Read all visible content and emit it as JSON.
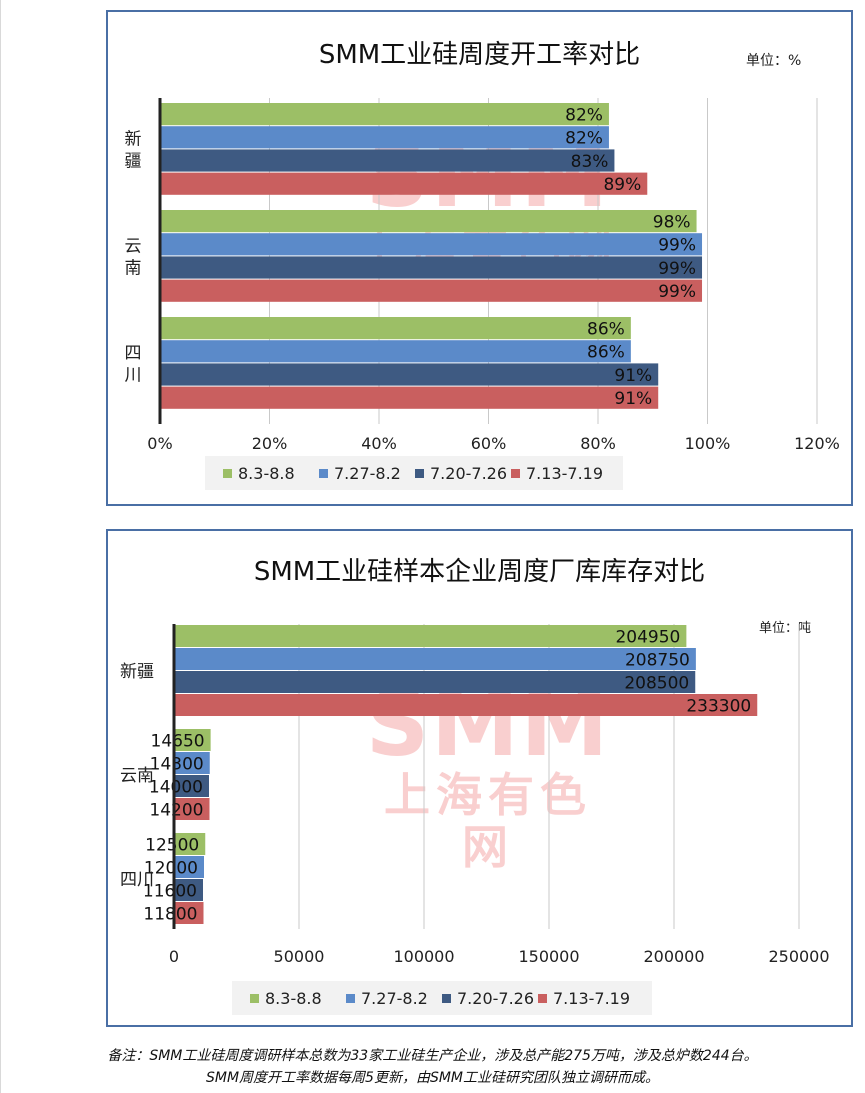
{
  "chart_data": [
    {
      "type": "bar",
      "orientation": "horizontal",
      "title": "SMM工业硅周度开工率对比",
      "unit_label": "单位：%",
      "categories": [
        "新疆",
        "云南",
        "四川"
      ],
      "series": [
        {
          "name": "8.3-8.8",
          "color": "#9cbf66",
          "values": [
            82,
            98,
            86
          ]
        },
        {
          "name": "7.27-8.2",
          "color": "#5b8ac9",
          "values": [
            82,
            99,
            86
          ]
        },
        {
          "name": "7.20-7.26",
          "color": "#3e5a82",
          "values": [
            83,
            99,
            91
          ]
        },
        {
          "name": "7.13-7.19",
          "color": "#c95f5f",
          "values": [
            89,
            99,
            91
          ]
        }
      ],
      "value_suffix": "%",
      "xlim": [
        0,
        120
      ],
      "ticks": [
        0,
        20,
        40,
        60,
        80,
        100,
        120
      ],
      "tick_labels": [
        "0%",
        "20%",
        "40%",
        "60%",
        "80%",
        "100%",
        "120%"
      ],
      "grid": true,
      "legend_position": "bottom"
    },
    {
      "type": "bar",
      "orientation": "horizontal",
      "title": "SMM工业硅样本企业周度厂库库存对比",
      "unit_label": "单位：吨",
      "categories": [
        "新疆",
        "云南",
        "四川"
      ],
      "series": [
        {
          "name": "8.3-8.8",
          "color": "#9cbf66",
          "values": [
            204950,
            14650,
            12500
          ]
        },
        {
          "name": "7.27-8.2",
          "color": "#5b8ac9",
          "values": [
            208750,
            14300,
            12000
          ]
        },
        {
          "name": "7.20-7.26",
          "color": "#3e5a82",
          "values": [
            208500,
            14000,
            11600
          ]
        },
        {
          "name": "7.13-7.19",
          "color": "#c95f5f",
          "values": [
            233300,
            14200,
            11800
          ]
        }
      ],
      "value_suffix": "",
      "xlim": [
        0,
        250000
      ],
      "ticks": [
        0,
        50000,
        100000,
        150000,
        200000,
        250000
      ],
      "tick_labels": [
        "0",
        "50000",
        "100000",
        "150000",
        "200000",
        "250000"
      ],
      "grid": true,
      "legend_position": "bottom"
    }
  ],
  "watermark": {
    "logo_text": "SMM",
    "company_name": "上海有色网"
  },
  "notes": {
    "line1": "备注：SMM工业硅周度调研样本总数为33家工业硅生产企业，涉及总产能275万吨，涉及总炉数244台。",
    "line2": "SMM周度开工率数据每周5更新，由SMM工业硅研究团队独立调研而成。"
  }
}
